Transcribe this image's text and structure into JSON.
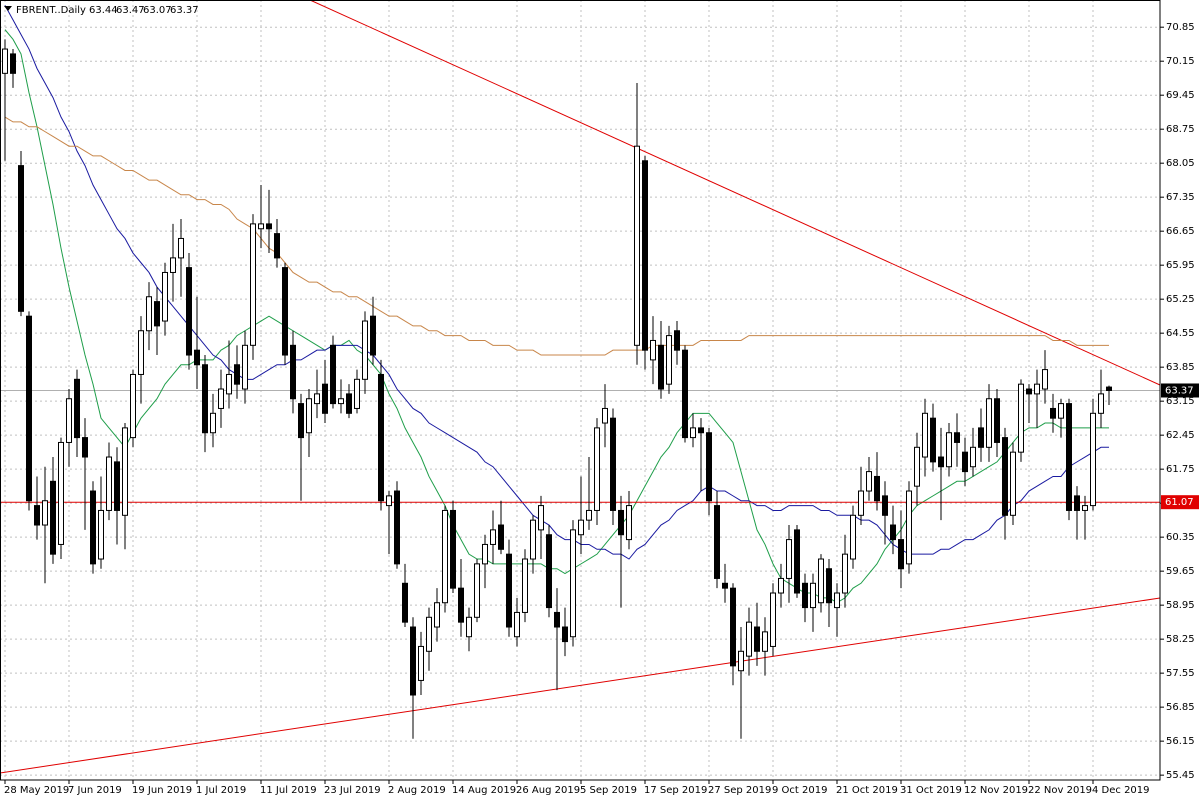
{
  "chart_data": {
    "type": "candlestick",
    "title": "FBRENT..Daily",
    "header_values": [
      63.44,
      63.47,
      63.07,
      63.37
    ],
    "categories": [
      "28 May 2019",
      null,
      null,
      null,
      null,
      null,
      null,
      null,
      "7 Jun 2019",
      null,
      null,
      null,
      null,
      null,
      null,
      null,
      "19 Jun 2019",
      null,
      null,
      null,
      null,
      null,
      null,
      null,
      "1 Jul 2019",
      null,
      null,
      null,
      null,
      null,
      null,
      null,
      "11 Jul 2019",
      null,
      null,
      null,
      null,
      null,
      null,
      null,
      "23 Jul 2019",
      null,
      null,
      null,
      null,
      null,
      null,
      null,
      "2 Aug 2019",
      null,
      null,
      null,
      null,
      null,
      null,
      null,
      "14 Aug 2019",
      null,
      null,
      null,
      null,
      null,
      null,
      null,
      "26 Aug 2019",
      null,
      null,
      null,
      null,
      null,
      null,
      null,
      "5 Sep 2019",
      null,
      null,
      null,
      null,
      null,
      null,
      null,
      "17 Sep 2019",
      null,
      null,
      null,
      null,
      null,
      null,
      null,
      "27 Sep 2019",
      null,
      null,
      null,
      null,
      null,
      null,
      null,
      "9 Oct 2019",
      null,
      null,
      null,
      null,
      null,
      null,
      null,
      "21 Oct 2019",
      null,
      null,
      null,
      null,
      null,
      null,
      null,
      "31 Oct 2019",
      null,
      null,
      null,
      null,
      null,
      null,
      null,
      "12 Nov 2019",
      null,
      null,
      null,
      null,
      null,
      null,
      null,
      "22 Nov 2019",
      null,
      null,
      null,
      null,
      null,
      null,
      null,
      "4 Dec 2019",
      null,
      null
    ],
    "open": [
      69.9,
      70.3,
      68.0,
      64.9,
      61.0,
      60.6,
      61.5,
      60.2,
      62.3,
      63.6,
      62.4,
      61.3,
      59.9,
      60.9,
      61.9,
      60.8,
      62.4,
      63.7,
      64.6,
      65.2,
      64.8,
      65.8,
      66.1,
      65.9,
      64.2,
      63.9,
      62.5,
      63.0,
      63.3,
      63.9,
      63.4,
      64.3,
      66.7,
      66.8,
      66.6,
      65.9,
      64.3,
      63.1,
      62.5,
      63.1,
      63.5,
      64.3,
      63.1,
      63.3,
      63.0,
      63.6,
      64.9,
      63.7,
      61.0,
      61.3,
      59.4,
      58.5,
      57.4,
      58.0,
      58.5,
      59.0,
      60.9,
      59.3,
      58.3,
      58.7,
      59.8,
      60.2,
      60.6,
      60.0,
      58.3,
      58.8,
      59.9,
      60.5,
      60.4,
      58.8,
      58.5,
      58.3,
      60.4,
      60.7,
      60.9,
      62.7,
      62.8,
      60.9,
      60.3,
      64.3,
      68.1,
      64.0,
      64.3,
      63.5,
      64.6,
      64.2,
      62.4,
      62.6,
      62.5,
      61.0,
      59.4,
      59.3,
      57.6,
      57.9,
      58.5,
      58.0,
      58.1,
      59.2,
      59.5,
      60.5,
      59.4,
      58.9,
      59.0,
      59.7,
      58.9,
      59.2,
      59.9,
      60.8,
      61.3,
      61.6,
      61.2,
      60.6,
      60.3,
      59.8,
      61.4,
      62.0,
      62.8,
      62.0,
      61.8,
      62.5,
      62.1,
      61.8,
      62.6,
      62.2,
      63.2,
      62.4,
      60.8,
      62.1,
      63.4,
      63.3,
      63.4,
      63.0,
      62.8,
      63.1,
      61.2,
      60.9,
      61.0,
      62.9,
      63.44
    ],
    "high": [
      70.6,
      70.4,
      68.3,
      65.0,
      61.6,
      61.8,
      62.0,
      62.4,
      63.4,
      63.8,
      62.8,
      61.5,
      61.6,
      62.3,
      62.2,
      62.7,
      63.8,
      64.9,
      65.6,
      65.5,
      66.0,
      66.8,
      66.9,
      66.2,
      65.3,
      64.1,
      63.3,
      63.8,
      64.4,
      64.3,
      64.6,
      67.0,
      67.6,
      67.5,
      66.9,
      66.0,
      64.6,
      63.3,
      63.4,
      63.8,
      64.0,
      64.5,
      63.6,
      63.5,
      63.8,
      65.0,
      65.3,
      64.0,
      61.3,
      61.5,
      59.8,
      58.7,
      58.4,
      58.9,
      59.3,
      61.0,
      61.1,
      59.9,
      58.9,
      59.9,
      60.4,
      60.9,
      61.1,
      60.3,
      59.1,
      60.1,
      60.8,
      61.2,
      60.6,
      59.3,
      58.9,
      60.7,
      61.6,
      62.0,
      62.8,
      63.5,
      63.0,
      61.2,
      61.3,
      69.7,
      68.2,
      64.9,
      64.8,
      64.7,
      64.8,
      64.3,
      62.9,
      62.8,
      62.6,
      61.3,
      59.8,
      59.4,
      58.5,
      58.9,
      59.0,
      58.7,
      59.4,
      59.8,
      60.6,
      60.6,
      59.6,
      59.6,
      60.0,
      59.9,
      59.4,
      60.4,
      61.0,
      61.8,
      62.0,
      62.1,
      61.5,
      61.0,
      60.9,
      61.5,
      62.5,
      63.2,
      63.1,
      62.6,
      62.7,
      62.9,
      62.4,
      62.6,
      63.0,
      63.5,
      63.4,
      62.6,
      62.3,
      63.6,
      63.5,
      63.8,
      64.2,
      63.3,
      63.2,
      63.2,
      61.4,
      61.2,
      63.2,
      63.8,
      63.47
    ],
    "low": [
      68.1,
      69.6,
      64.9,
      60.9,
      60.3,
      59.4,
      59.8,
      59.9,
      61.8,
      62.0,
      60.5,
      59.6,
      59.7,
      60.7,
      60.2,
      60.1,
      62.2,
      63.1,
      64.2,
      64.1,
      64.5,
      65.2,
      65.3,
      63.8,
      63.4,
      62.1,
      62.2,
      62.6,
      63.0,
      63.2,
      63.1,
      64.0,
      66.3,
      66.2,
      65.9,
      63.9,
      62.9,
      61.1,
      62.0,
      62.8,
      62.7,
      63.0,
      62.9,
      62.8,
      62.9,
      63.3,
      63.9,
      60.9,
      60.0,
      59.7,
      58.5,
      56.2,
      57.1,
      57.6,
      58.2,
      58.8,
      59.2,
      58.3,
      58.0,
      58.6,
      59.3,
      59.8,
      60.0,
      58.3,
      58.1,
      58.6,
      59.6,
      59.9,
      58.7,
      57.2,
      57.9,
      58.1,
      60.0,
      60.5,
      60.6,
      62.2,
      60.6,
      58.9,
      60.1,
      63.9,
      63.8,
      63.5,
      63.2,
      63.3,
      63.9,
      62.3,
      62.2,
      61.3,
      60.8,
      59.3,
      59.0,
      57.3,
      56.2,
      57.5,
      57.7,
      57.5,
      57.9,
      58.9,
      59.0,
      59.1,
      58.6,
      58.4,
      58.8,
      58.5,
      58.3,
      58.9,
      59.7,
      60.6,
      61.1,
      60.9,
      60.2,
      60.0,
      59.3,
      59.6,
      61.0,
      61.6,
      61.7,
      60.7,
      61.6,
      61.8,
      61.4,
      61.6,
      61.9,
      61.9,
      62.0,
      60.3,
      60.6,
      61.9,
      62.7,
      62.6,
      63.1,
      62.5,
      62.4,
      60.7,
      60.3,
      60.3,
      60.9,
      62.6,
      63.07
    ],
    "close": [
      70.4,
      69.9,
      65.0,
      61.1,
      60.6,
      61.1,
      60.0,
      62.3,
      63.2,
      62.4,
      62.0,
      59.8,
      60.9,
      62.0,
      60.9,
      62.6,
      63.7,
      64.6,
      65.3,
      64.7,
      65.8,
      66.1,
      66.5,
      64.1,
      63.9,
      62.5,
      62.9,
      63.4,
      63.7,
      63.5,
      64.3,
      66.8,
      66.8,
      66.7,
      66.1,
      64.1,
      63.2,
      62.4,
      63.2,
      63.3,
      62.9,
      63.1,
      63.2,
      62.9,
      63.6,
      64.8,
      64.1,
      61.1,
      61.2,
      59.8,
      58.6,
      57.1,
      58.1,
      58.7,
      59.0,
      60.9,
      59.3,
      58.6,
      58.7,
      59.8,
      60.2,
      60.5,
      60.1,
      58.5,
      58.8,
      59.9,
      60.7,
      61.0,
      58.9,
      58.5,
      58.2,
      60.5,
      60.7,
      60.9,
      62.6,
      63.0,
      60.9,
      60.4,
      61.0,
      68.4,
      64.2,
      64.4,
      63.4,
      64.5,
      64.2,
      62.4,
      62.6,
      62.5,
      61.1,
      59.5,
      59.3,
      57.7,
      58.0,
      58.6,
      58.0,
      58.4,
      59.2,
      59.5,
      60.3,
      59.2,
      58.9,
      59.4,
      59.9,
      59.0,
      59.2,
      60.0,
      60.8,
      61.3,
      61.7,
      61.1,
      60.8,
      60.3,
      59.7,
      61.3,
      62.2,
      62.9,
      61.9,
      61.8,
      62.5,
      62.3,
      61.7,
      62.2,
      62.2,
      63.2,
      62.3,
      60.8,
      62.1,
      63.5,
      63.3,
      63.5,
      63.8,
      62.8,
      63.1,
      60.9,
      60.9,
      61.0,
      62.9,
      63.3,
      63.37
    ],
    "series": [
      {
        "color": "#1f9e4a",
        "values": [
          70.8,
          70.6,
          70.3,
          69.5,
          68.8,
          68.0,
          67.2,
          66.3,
          65.5,
          64.8,
          64.1,
          63.5,
          62.8,
          62.6,
          62.4,
          62.2,
          62.5,
          62.8,
          63.0,
          63.2,
          63.5,
          63.7,
          63.9,
          63.9,
          64.0,
          64.0,
          64.0,
          64.2,
          64.3,
          64.5,
          64.6,
          64.7,
          64.8,
          64.9,
          64.8,
          64.7,
          64.6,
          64.5,
          64.4,
          64.3,
          64.2,
          64.3,
          64.3,
          64.4,
          64.2,
          64.1,
          63.9,
          63.7,
          63.3,
          63.0,
          62.6,
          62.3,
          62.0,
          61.6,
          61.3,
          61.0,
          60.6,
          60.3,
          60.0,
          59.9,
          59.9,
          59.8,
          59.8,
          59.8,
          59.8,
          59.8,
          59.8,
          59.8,
          59.7,
          59.7,
          59.6,
          59.7,
          59.8,
          59.9,
          60.0,
          60.2,
          60.4,
          60.6,
          60.8,
          61.1,
          61.4,
          61.7,
          62.0,
          62.2,
          62.5,
          62.7,
          62.9,
          62.9,
          62.9,
          62.7,
          62.5,
          62.3,
          61.7,
          61.1,
          60.5,
          60.2,
          59.8,
          59.5,
          59.4,
          59.3,
          59.2,
          59.2,
          59.1,
          59.1,
          59.0,
          59.1,
          59.3,
          59.4,
          59.6,
          59.8,
          60.1,
          60.3,
          60.5,
          60.8,
          61.0,
          61.1,
          61.2,
          61.3,
          61.4,
          61.5,
          61.5,
          61.6,
          61.7,
          61.8,
          61.9,
          62.1,
          62.3,
          62.5,
          62.6,
          62.6,
          62.7,
          62.7,
          62.6,
          62.6,
          62.6,
          62.6,
          62.6,
          62.6,
          62.6
        ]
      },
      {
        "color": "#1a1aa0",
        "values": [
          71.3,
          71.0,
          70.7,
          70.4,
          70.0,
          69.7,
          69.4,
          69.0,
          68.7,
          68.3,
          68.0,
          67.6,
          67.3,
          67.0,
          66.7,
          66.5,
          66.2,
          66.0,
          65.8,
          65.5,
          65.3,
          65.1,
          64.9,
          64.7,
          64.5,
          64.3,
          64.1,
          64.0,
          63.8,
          63.7,
          63.6,
          63.6,
          63.7,
          63.8,
          63.9,
          63.9,
          64.0,
          64.0,
          64.1,
          64.2,
          64.2,
          64.3,
          64.3,
          64.3,
          64.3,
          64.2,
          64.1,
          63.9,
          63.7,
          63.4,
          63.2,
          63.0,
          62.9,
          62.7,
          62.6,
          62.5,
          62.4,
          62.3,
          62.2,
          62.1,
          61.9,
          61.8,
          61.6,
          61.4,
          61.2,
          61.0,
          60.8,
          60.7,
          60.6,
          60.4,
          60.3,
          60.3,
          60.2,
          60.2,
          60.1,
          60.1,
          60.0,
          60.0,
          59.9,
          60.1,
          60.2,
          60.4,
          60.6,
          60.7,
          60.9,
          61.0,
          61.1,
          61.3,
          61.4,
          61.3,
          61.3,
          61.2,
          61.1,
          61.1,
          61.0,
          61.0,
          60.9,
          60.9,
          61.0,
          61.0,
          61.0,
          61.0,
          60.9,
          60.9,
          60.8,
          60.8,
          60.8,
          60.7,
          60.7,
          60.6,
          60.4,
          60.2,
          60.1,
          60.0,
          60.0,
          60.0,
          60.0,
          60.1,
          60.1,
          60.2,
          60.3,
          60.3,
          60.4,
          60.5,
          60.7,
          60.8,
          61.0,
          61.1,
          61.3,
          61.4,
          61.5,
          61.6,
          61.6,
          61.8,
          61.9,
          62.0,
          62.1,
          62.2,
          62.2
        ]
      },
      {
        "color": "#c8864a",
        "values": [
          69.0,
          68.9,
          68.9,
          68.8,
          68.8,
          68.7,
          68.6,
          68.5,
          68.4,
          68.4,
          68.3,
          68.2,
          68.2,
          68.1,
          68.0,
          67.9,
          67.9,
          67.8,
          67.7,
          67.7,
          67.6,
          67.5,
          67.4,
          67.4,
          67.3,
          67.3,
          67.2,
          67.2,
          67.1,
          66.9,
          66.8,
          66.7,
          66.5,
          66.3,
          66.2,
          66.0,
          65.8,
          65.7,
          65.6,
          65.6,
          65.5,
          65.4,
          65.4,
          65.3,
          65.3,
          65.2,
          65.1,
          65.0,
          64.9,
          64.9,
          64.8,
          64.7,
          64.7,
          64.6,
          64.6,
          64.5,
          64.5,
          64.5,
          64.4,
          64.4,
          64.4,
          64.3,
          64.3,
          64.3,
          64.2,
          64.2,
          64.2,
          64.1,
          64.1,
          64.1,
          64.1,
          64.1,
          64.1,
          64.1,
          64.1,
          64.1,
          64.2,
          64.2,
          64.2,
          64.2,
          64.2,
          64.3,
          64.3,
          64.3,
          64.3,
          64.3,
          64.3,
          64.4,
          64.4,
          64.4,
          64.4,
          64.4,
          64.4,
          64.5,
          64.5,
          64.5,
          64.5,
          64.5,
          64.5,
          64.5,
          64.5,
          64.5,
          64.5,
          64.5,
          64.5,
          64.5,
          64.5,
          64.5,
          64.5,
          64.5,
          64.5,
          64.5,
          64.5,
          64.5,
          64.5,
          64.5,
          64.5,
          64.5,
          64.5,
          64.5,
          64.5,
          64.5,
          64.5,
          64.5,
          64.5,
          64.5,
          64.5,
          64.5,
          64.5,
          64.5,
          64.5,
          64.4,
          64.4,
          64.4,
          64.3,
          64.3,
          64.3,
          64.3,
          64.3
        ]
      }
    ],
    "ylim": [
      55.35,
      71.41
    ],
    "yticks": [
      55.45,
      56.15,
      56.85,
      57.55,
      58.25,
      58.95,
      59.65,
      60.35,
      61.05,
      61.75,
      62.45,
      63.15,
      63.85,
      64.55,
      65.25,
      65.95,
      66.65,
      67.35,
      68.05,
      68.75,
      69.45,
      70.15,
      70.85
    ],
    "grid": true,
    "hline": {
      "value": 61.07,
      "color": "#e00000"
    },
    "last_price": 63.37
  }
}
